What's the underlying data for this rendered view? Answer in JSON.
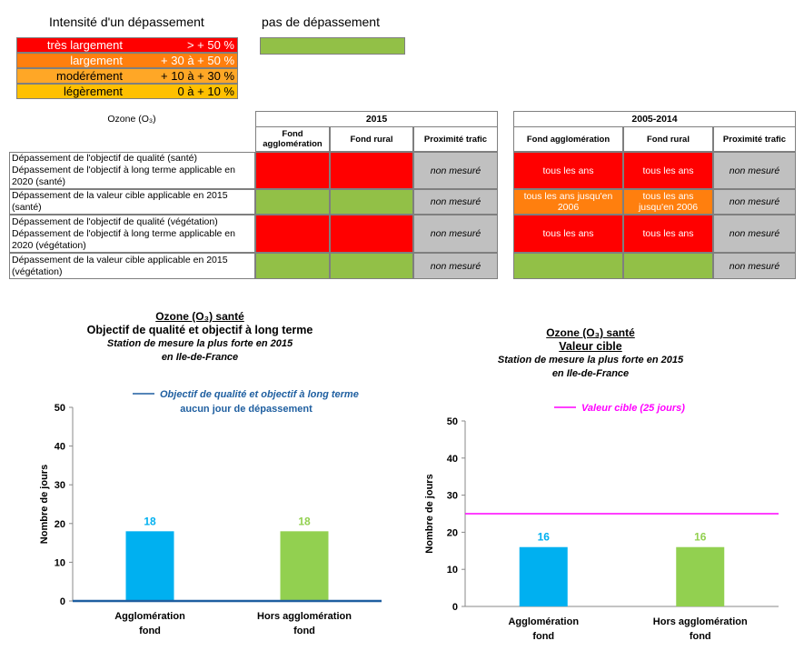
{
  "legend": {
    "title": "Intensité d'un dépassement",
    "no_exceed_title": "pas de dépassement",
    "rows": [
      {
        "label": "très largement",
        "range": "> + 50 %",
        "color": "#ff0000",
        "text_color": "#ffffff"
      },
      {
        "label": "largement",
        "range": "+ 30 à + 50 %",
        "color": "#ff7f0e",
        "text_color": "#ffffff"
      },
      {
        "label": "modérément",
        "range": "+ 10 à + 30 %",
        "color": "#ffa726",
        "text_color": "#000000"
      },
      {
        "label": "légèrement",
        "range": "0  à + 10 %",
        "color": "#ffc000",
        "text_color": "#000000"
      }
    ],
    "no_exceed_color": "#92c047"
  },
  "table": {
    "pollutant": "Ozone (O₃)",
    "period1": "2015",
    "period2": "2005-2014",
    "cols": [
      "Fond agglomération",
      "Fond rural",
      "Proximité trafic"
    ],
    "cols2": [
      "Fond agglomération",
      "Fond rural",
      "Proximité trafic"
    ],
    "rows": [
      {
        "label": "Dépassement de l'objectif de qualité (santé)\nDépassement de l'objectif à long terme applicable en 2020 (santé)",
        "p1": [
          "",
          "",
          "non mesuré"
        ],
        "p2": [
          "tous les ans",
          "tous les ans",
          "non mesuré"
        ]
      },
      {
        "label": "Dépassement de la valeur cible applicable en 2015 (santé)",
        "p1": [
          "",
          "",
          "non mesuré"
        ],
        "p2": [
          "tous les ans jusqu'en 2006",
          "tous les ans jusqu'en 2006",
          "non mesuré"
        ]
      },
      {
        "label": "Dépassement de l'objectif de qualité (végétation)\nDépassement de l'objectif à long terme applicable en 2020 (végétation)",
        "p1": [
          "",
          "",
          "non mesuré"
        ],
        "p2": [
          "tous les ans",
          "tous les ans",
          "non mesuré"
        ]
      },
      {
        "label": "Dépassement de la valeur cible applicable en 2015 (végétation)",
        "p1": [
          "",
          "",
          "non mesuré"
        ],
        "p2": [
          "",
          "",
          "non mesuré"
        ]
      }
    ]
  },
  "chart_data": [
    {
      "type": "bar",
      "title": "Ozone (O₃) santé",
      "subtitle": "Objectif de qualité et objectif à long terme",
      "subtitle2": "Station de mesure la plus forte en 2015",
      "subtitle3": "en Ile-de-France",
      "annotation1": "Objectif de qualité et objectif à long terme",
      "annotation2": "aucun jour de dépassement",
      "annotation_color": "#1f5fa0",
      "categories": [
        "Agglomération fond",
        "Hors agglomération fond"
      ],
      "values": [
        18,
        18
      ],
      "colors": [
        "#00b0f0",
        "#92d050"
      ],
      "ylabel": "Nombre de jours",
      "ylim": [
        0,
        50
      ],
      "yticks": [
        0,
        10,
        20,
        30,
        40,
        50
      ],
      "reference_value": 0,
      "reference_color": "#1f5fa0"
    },
    {
      "type": "bar",
      "title": "Ozone (O₃) santé",
      "subtitle": "Valeur cible",
      "subtitle2": "Station de mesure la plus forte en 2015",
      "subtitle3": "en Ile-de-France",
      "annotation1": "Valeur cible (25 jours)",
      "annotation_color": "#ff00ff",
      "categories": [
        "Agglomération fond",
        "Hors agglomération fond"
      ],
      "values": [
        16,
        16
      ],
      "colors": [
        "#00b0f0",
        "#92d050"
      ],
      "ylabel": "Nombre de jours",
      "ylim": [
        0,
        50
      ],
      "yticks": [
        0,
        10,
        20,
        30,
        40,
        50
      ],
      "reference_value": 25,
      "reference_color": "#ff00ff"
    }
  ]
}
